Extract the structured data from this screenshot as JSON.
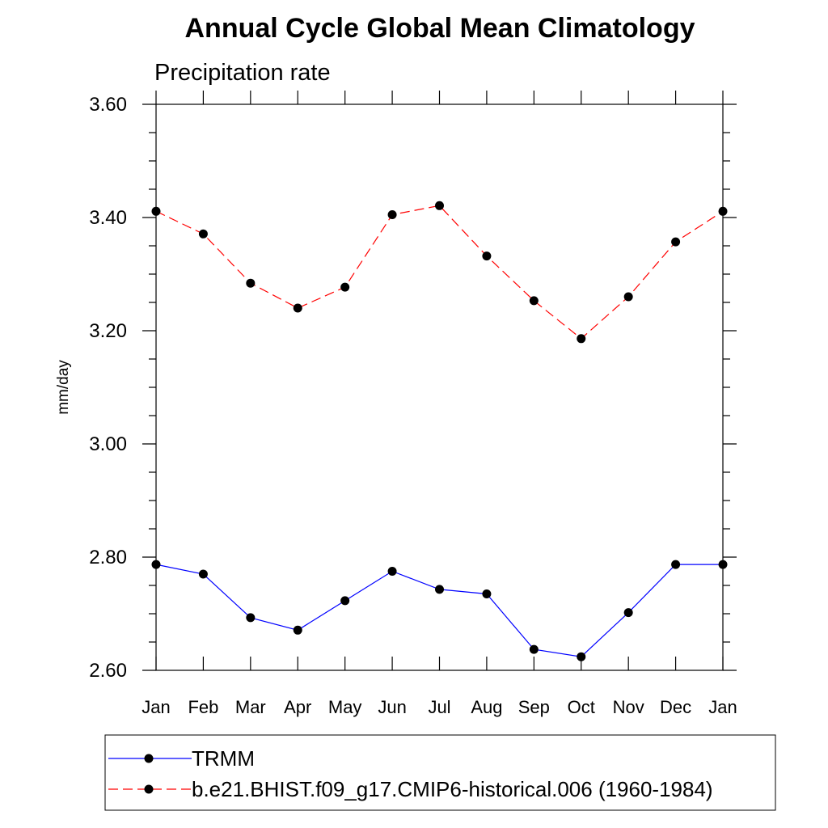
{
  "chart_data": {
    "type": "line",
    "title": "Annual Cycle Global Mean Climatology",
    "subtitle": "Precipitation rate",
    "ylabel": "mm/day",
    "xlabel": "",
    "ylim": [
      2.6,
      3.6
    ],
    "yticks": [
      "2.60",
      "2.80",
      "3.00",
      "3.20",
      "3.40",
      "3.60"
    ],
    "ytick_values": [
      2.6,
      2.8,
      3.0,
      3.2,
      3.4,
      3.6
    ],
    "categories": [
      "Jan",
      "Feb",
      "Mar",
      "Apr",
      "May",
      "Jun",
      "Jul",
      "Aug",
      "Sep",
      "Oct",
      "Nov",
      "Dec",
      "Jan"
    ],
    "grid": false,
    "legend_position": "bottom",
    "series": [
      {
        "name": "TRMM",
        "color": "#0000ff",
        "style": "solid",
        "marker": "filled-circle",
        "values": [
          2.787,
          2.77,
          2.693,
          2.671,
          2.723,
          2.775,
          2.743,
          2.735,
          2.637,
          2.624,
          2.702,
          2.787,
          2.787
        ]
      },
      {
        "name": "b.e21.BHIST.f09_g17.CMIP6-historical.006 (1960-1984)",
        "color": "#ff0000",
        "style": "dashed",
        "marker": "filled-circle",
        "values": [
          3.411,
          3.371,
          3.284,
          3.24,
          3.277,
          3.405,
          3.421,
          3.332,
          3.253,
          3.186,
          3.26,
          3.357,
          3.411
        ]
      }
    ]
  }
}
